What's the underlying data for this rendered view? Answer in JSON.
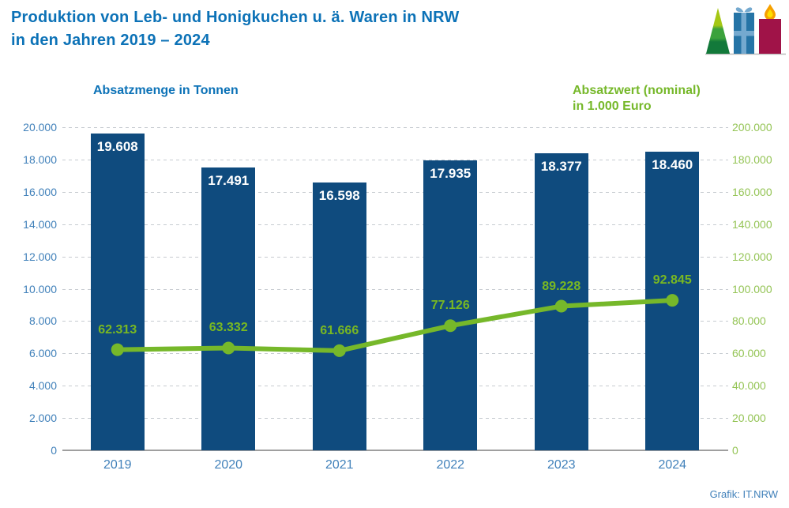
{
  "header": {
    "title": "Produktion von Leb- und Honigkuchen u. ä. Waren in NRW\nin den Jahren 2019 – 2024"
  },
  "legends": {
    "left": "Absatzmenge in Tonnen",
    "right": "Absatzwert (nominal)\nin 1.000 Euro"
  },
  "credit": "Grafik: IT.NRW",
  "decoration": {
    "icons": [
      "christmas-tree-icon",
      "gift-icon",
      "candle-icon"
    ],
    "colors": {
      "tree_top": "#a5c714",
      "tree_mid": "#3ba23c",
      "tree_bottom": "#12793a",
      "gift_box": "#2574a6",
      "gift_ribbon": "#74a9cf",
      "candle_body": "#a01348",
      "flame_outer": "#f6a000",
      "flame_inner": "#ffdf00"
    }
  },
  "colors": {
    "bar": "#0f4b7e",
    "line": "#76b82a",
    "title_blue": "#0c72b7",
    "axis_blue": "#4181ba",
    "axis_green": "#94c455"
  },
  "chart_data": {
    "type": "bar",
    "subtype": "bar+line-combo",
    "title": "Produktion von Leb- und Honigkuchen u. ä. Waren in NRW in den Jahren 2019 – 2024",
    "categories": [
      "2019",
      "2020",
      "2021",
      "2022",
      "2023",
      "2024"
    ],
    "series": [
      {
        "name": "Absatzmenge in Tonnen",
        "type": "bar",
        "axis": "left",
        "color": "#0f4b7e",
        "values": [
          19608,
          17491,
          16598,
          17935,
          18377,
          18460
        ],
        "labels": [
          "19.608",
          "17.491",
          "16.598",
          "17.935",
          "18.377",
          "18.460"
        ]
      },
      {
        "name": "Absatzwert (nominal) in 1.000 Euro",
        "type": "line",
        "axis": "right",
        "color": "#76b82a",
        "values": [
          62313,
          63332,
          61666,
          77126,
          89228,
          92845
        ],
        "labels": [
          "62.313",
          "63.332",
          "61.666",
          "77.126",
          "89.228",
          "92.845"
        ]
      }
    ],
    "left_axis": {
      "label": "Absatzmenge in Tonnen",
      "min": 0,
      "max": 20000,
      "tick_labels": [
        "20.000",
        "18.000",
        "16.000",
        "14.000",
        "12.000",
        "10.000",
        "8.000",
        "6.000",
        "4.000",
        "2.000",
        "0"
      ]
    },
    "right_axis": {
      "label": "Absatzwert (nominal) in 1.000 Euro",
      "min": 0,
      "max": 200000,
      "tick_labels": [
        "200.000",
        "180.000",
        "160.000",
        "140.000",
        "120.000",
        "100.000",
        "80.000",
        "60.000",
        "40.000",
        "20.000",
        "0"
      ]
    },
    "grid": "horizontal-dashed",
    "legend_position": "top"
  }
}
